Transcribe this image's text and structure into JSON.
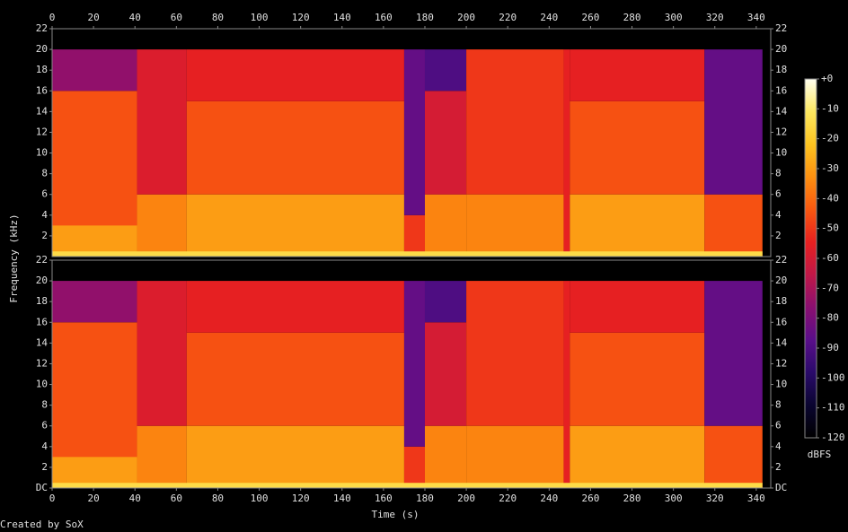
{
  "chart_data": {
    "type": "spectrogram",
    "xlabel": "Time (s)",
    "ylabel": "Frequency (kHz)",
    "credit": "Created by SoX",
    "xlim": [
      0,
      347
    ],
    "xticks": [
      0,
      20,
      40,
      60,
      80,
      100,
      120,
      140,
      160,
      180,
      200,
      220,
      240,
      260,
      280,
      300,
      320,
      340
    ],
    "ylim": [
      0,
      22
    ],
    "channels": [
      {
        "yticks": [
          2,
          4,
          6,
          8,
          10,
          12,
          14,
          16,
          18,
          20,
          22
        ],
        "regions": [
          {
            "t": [
              0,
              41
            ],
            "f": [
              0,
              16
            ],
            "db": -45
          },
          {
            "t": [
              0,
              41
            ],
            "f": [
              16,
              20
            ],
            "db": -75
          },
          {
            "t": [
              0,
              41
            ],
            "f": [
              0,
              3
            ],
            "db": -30
          },
          {
            "t": [
              41,
              65
            ],
            "f": [
              0,
              6
            ],
            "db": -35
          },
          {
            "t": [
              41,
              65
            ],
            "f": [
              6,
              20
            ],
            "db": -58
          },
          {
            "t": [
              65,
              170
            ],
            "f": [
              0,
              6
            ],
            "db": -30
          },
          {
            "t": [
              65,
              170
            ],
            "f": [
              6,
              15
            ],
            "db": -45
          },
          {
            "t": [
              65,
              170
            ],
            "f": [
              15,
              20
            ],
            "db": -55
          },
          {
            "t": [
              170,
              180
            ],
            "f": [
              0,
              4
            ],
            "db": -50
          },
          {
            "t": [
              170,
              180
            ],
            "f": [
              4,
              20
            ],
            "db": -85
          },
          {
            "t": [
              180,
              200
            ],
            "f": [
              0,
              6
            ],
            "db": -35
          },
          {
            "t": [
              180,
              200
            ],
            "f": [
              6,
              16
            ],
            "db": -60
          },
          {
            "t": [
              180,
              200
            ],
            "f": [
              16,
              20
            ],
            "db": -90
          },
          {
            "t": [
              200,
              247
            ],
            "f": [
              0,
              6
            ],
            "db": -35
          },
          {
            "t": [
              200,
              247
            ],
            "f": [
              6,
              20
            ],
            "db": -50
          },
          {
            "t": [
              247,
              250
            ],
            "f": [
              0,
              20
            ],
            "db": -55
          },
          {
            "t": [
              250,
              315
            ],
            "f": [
              0,
              6
            ],
            "db": -30
          },
          {
            "t": [
              250,
              315
            ],
            "f": [
              6,
              15
            ],
            "db": -45
          },
          {
            "t": [
              250,
              315
            ],
            "f": [
              15,
              20
            ],
            "db": -55
          },
          {
            "t": [
              315,
              343
            ],
            "f": [
              0,
              6
            ],
            "db": -45
          },
          {
            "t": [
              315,
              343
            ],
            "f": [
              6,
              20
            ],
            "db": -85
          },
          {
            "t": [
              0,
              343
            ],
            "f": [
              0,
              0.5
            ],
            "db": -15
          }
        ]
      },
      {
        "yticks": [
          {
            "value": 0,
            "label": "DC"
          },
          2,
          4,
          6,
          8,
          10,
          12,
          14,
          16,
          18,
          20,
          22
        ],
        "regions": [
          {
            "t": [
              0,
              41
            ],
            "f": [
              0,
              16
            ],
            "db": -45
          },
          {
            "t": [
              0,
              41
            ],
            "f": [
              16,
              20
            ],
            "db": -75
          },
          {
            "t": [
              0,
              41
            ],
            "f": [
              0,
              3
            ],
            "db": -30
          },
          {
            "t": [
              41,
              65
            ],
            "f": [
              0,
              6
            ],
            "db": -35
          },
          {
            "t": [
              41,
              65
            ],
            "f": [
              6,
              20
            ],
            "db": -58
          },
          {
            "t": [
              65,
              170
            ],
            "f": [
              0,
              6
            ],
            "db": -30
          },
          {
            "t": [
              65,
              170
            ],
            "f": [
              6,
              15
            ],
            "db": -45
          },
          {
            "t": [
              65,
              170
            ],
            "f": [
              15,
              20
            ],
            "db": -55
          },
          {
            "t": [
              170,
              180
            ],
            "f": [
              0,
              4
            ],
            "db": -50
          },
          {
            "t": [
              170,
              180
            ],
            "f": [
              4,
              20
            ],
            "db": -85
          },
          {
            "t": [
              180,
              200
            ],
            "f": [
              0,
              6
            ],
            "db": -35
          },
          {
            "t": [
              180,
              200
            ],
            "f": [
              6,
              16
            ],
            "db": -60
          },
          {
            "t": [
              180,
              200
            ],
            "f": [
              16,
              20
            ],
            "db": -90
          },
          {
            "t": [
              200,
              247
            ],
            "f": [
              0,
              6
            ],
            "db": -35
          },
          {
            "t": [
              200,
              247
            ],
            "f": [
              6,
              20
            ],
            "db": -50
          },
          {
            "t": [
              247,
              250
            ],
            "f": [
              0,
              20
            ],
            "db": -55
          },
          {
            "t": [
              250,
              315
            ],
            "f": [
              0,
              6
            ],
            "db": -30
          },
          {
            "t": [
              250,
              315
            ],
            "f": [
              6,
              15
            ],
            "db": -45
          },
          {
            "t": [
              250,
              315
            ],
            "f": [
              15,
              20
            ],
            "db": -55
          },
          {
            "t": [
              315,
              343
            ],
            "f": [
              0,
              6
            ],
            "db": -45
          },
          {
            "t": [
              315,
              343
            ],
            "f": [
              6,
              20
            ],
            "db": -85
          },
          {
            "t": [
              0,
              343
            ],
            "f": [
              0,
              0.5
            ],
            "db": -15
          }
        ]
      }
    ],
    "colorbar": {
      "label": "dBFS",
      "zlim": [
        -120,
        0
      ],
      "ticks": [
        {
          "value": 0,
          "label": "+0"
        },
        -10,
        -20,
        -30,
        -40,
        -50,
        -60,
        -70,
        -80,
        -90,
        -100,
        -110,
        -120
      ],
      "colors": [
        "#000000",
        "#0a0530",
        "#2a0a6a",
        "#5a0e8a",
        "#8a0f70",
        "#c01848",
        "#e82020",
        "#f85810",
        "#fc9010",
        "#fdc420",
        "#fde860",
        "#fffff0"
      ]
    }
  }
}
